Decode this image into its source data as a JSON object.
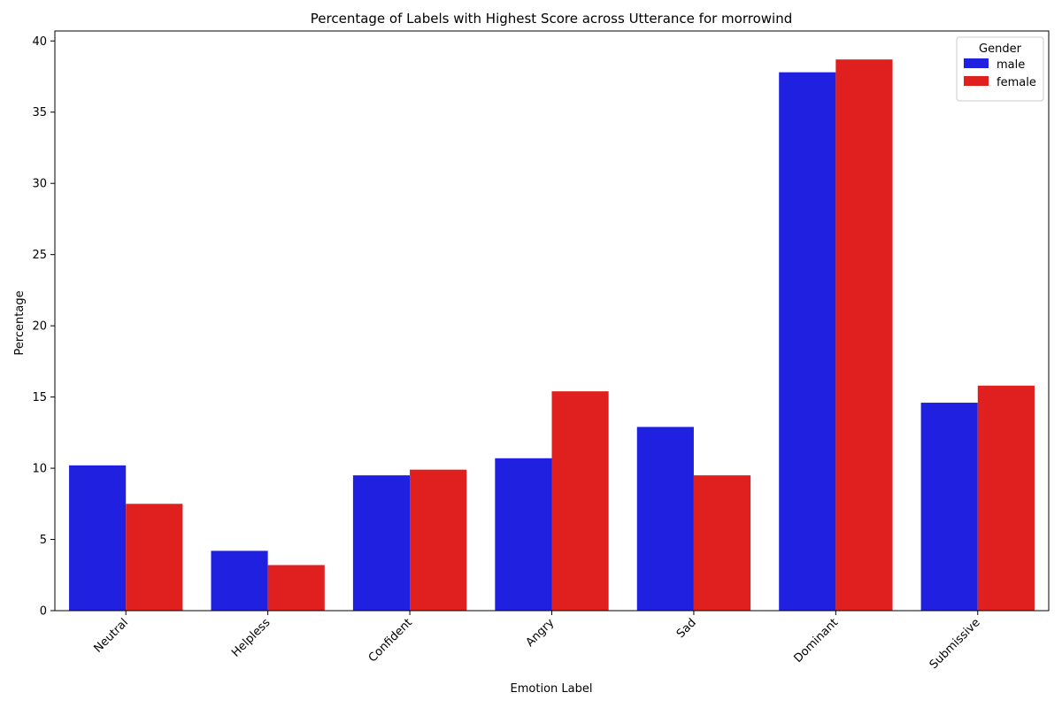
{
  "chart_data": {
    "type": "bar",
    "title": "Percentage of Labels with Highest Score across Utterance for morrowind",
    "xlabel": "Emotion Label",
    "ylabel": "Percentage",
    "categories": [
      "Neutral",
      "Helpless",
      "Confident",
      "Angry",
      "Sad",
      "Dominant",
      "Submissive"
    ],
    "series": [
      {
        "name": "male",
        "color": "#2020e0",
        "values": [
          10.2,
          4.2,
          9.5,
          10.7,
          12.9,
          37.8,
          14.6
        ]
      },
      {
        "name": "female",
        "color": "#e01f1f",
        "values": [
          7.5,
          3.2,
          9.9,
          15.4,
          9.5,
          38.7,
          15.8
        ]
      }
    ],
    "ylim": [
      0,
      40.7
    ],
    "yticks": [
      0,
      5,
      10,
      15,
      20,
      25,
      30,
      35,
      40
    ],
    "grid": false,
    "legend": {
      "title": "Gender",
      "placement": "top-right"
    }
  }
}
